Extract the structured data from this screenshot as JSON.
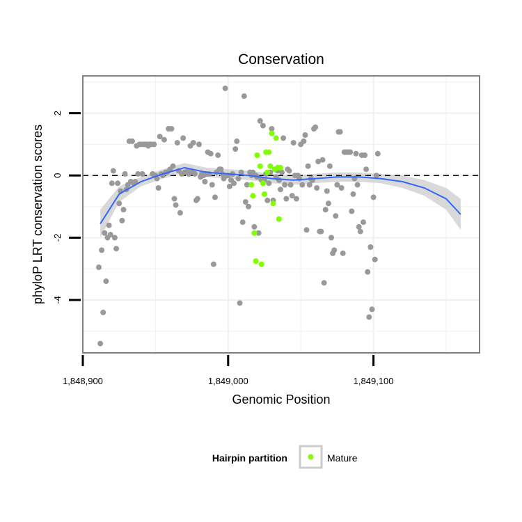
{
  "chart_data": {
    "type": "scatter",
    "title": "Conservation",
    "xlabel": "Genomic Position",
    "ylabel": "phyloP LRT conservation scores",
    "xlim": [
      1848900,
      1849173
    ],
    "ylim": [
      -5.7,
      3.2
    ],
    "x_ticks": [
      1848900,
      1849000,
      1849100
    ],
    "x_tick_labels": [
      "1,848,900",
      "1,849,000",
      "1,849,100"
    ],
    "y_ticks": [
      2,
      0,
      -2,
      -4
    ],
    "y_tick_labels": [
      "2",
      "0",
      "-2",
      "-4"
    ],
    "x_minor_grid": [
      1848950,
      1849050,
      1849150
    ],
    "y_minor_grid": [
      3,
      1,
      -1,
      -3,
      -5
    ],
    "grid": true,
    "reference_line_y": 0,
    "legend": {
      "title": "Hairpin partition",
      "position": "bottom",
      "entries": [
        {
          "label": "Mature",
          "color": "#7fff00"
        }
      ]
    },
    "colors": {
      "background_points": "#999999",
      "mature_points": "#7fff00",
      "smooth_line": "#3366ff",
      "confidence_band": "#cccccc",
      "panel_border": "#808080",
      "grid": "#f0f0f0"
    },
    "series": [
      {
        "color": "#999999",
        "points": [
          [
            1848911,
            -2.95
          ],
          [
            1848912,
            -5.4
          ],
          [
            1848913,
            -2.4
          ],
          [
            1848914,
            -4.4
          ],
          [
            1848915,
            -1.85
          ],
          [
            1848916,
            -3.4
          ],
          [
            1848917,
            -2.0
          ],
          [
            1848918,
            -1.6
          ],
          [
            1848919,
            -1.9
          ],
          [
            1848920,
            -0.25
          ],
          [
            1848921,
            0.15
          ],
          [
            1848922,
            -2.0
          ],
          [
            1848923,
            -2.35
          ],
          [
            1848924,
            -0.25
          ],
          [
            1848925,
            -0.9
          ],
          [
            1848926,
            -0.5
          ],
          [
            1848927,
            -1.45
          ],
          [
            1848928,
            -1.1
          ],
          [
            1848929,
            0.05
          ],
          [
            1848930,
            -0.45
          ],
          [
            1848931,
            -0.3
          ],
          [
            1848932,
            1.1
          ],
          [
            1848933,
            -0.2
          ],
          [
            1848934,
            1.1
          ],
          [
            1848935,
            -0.25
          ],
          [
            1848936,
            -0.2
          ],
          [
            1848937,
            0.95
          ],
          [
            1848938,
            0.05
          ],
          [
            1848939,
            1.0
          ],
          [
            1848940,
            1.0
          ],
          [
            1848941,
            0.05
          ],
          [
            1848942,
            1.0
          ],
          [
            1848943,
            1.0
          ],
          [
            1848944,
            1.0
          ],
          [
            1848945,
            0.95
          ],
          [
            1848946,
            1.0
          ],
          [
            1848947,
            1.0
          ],
          [
            1848948,
            0.05
          ],
          [
            1848949,
            1.0
          ],
          [
            1848950,
            0.0
          ],
          [
            1848951,
            -0.1
          ],
          [
            1848952,
            -0.4
          ],
          [
            1848953,
            1.25
          ],
          [
            1848954,
            0.05
          ],
          [
            1848955,
            0.0
          ],
          [
            1848956,
            1.15
          ],
          [
            1848957,
            0.1
          ],
          [
            1848958,
            0.1
          ],
          [
            1848959,
            1.5
          ],
          [
            1848960,
            0.2
          ],
          [
            1848961,
            1.5
          ],
          [
            1848962,
            0.3
          ],
          [
            1848963,
            -0.75
          ],
          [
            1848964,
            -0.95
          ],
          [
            1848965,
            1.05
          ],
          [
            1848966,
            0.15
          ],
          [
            1848967,
            -1.2
          ],
          [
            1848968,
            0.05
          ],
          [
            1848969,
            1.2
          ],
          [
            1848970,
            0.1
          ],
          [
            1848971,
            0.1
          ],
          [
            1848972,
            0.15
          ],
          [
            1848973,
            0.05
          ],
          [
            1848974,
            0.95
          ],
          [
            1848975,
            0.1
          ],
          [
            1848976,
            1.05
          ],
          [
            1848977,
            0.05
          ],
          [
            1848978,
            -0.8
          ],
          [
            1848979,
            -0.75
          ],
          [
            1848980,
            1.0
          ],
          [
            1848981,
            -0.05
          ],
          [
            1848982,
            0.05
          ],
          [
            1848983,
            0.0
          ],
          [
            1848984,
            -0.2
          ],
          [
            1848985,
            0.05
          ],
          [
            1848986,
            0.75
          ],
          [
            1848987,
            0.05
          ],
          [
            1848988,
            0.7
          ],
          [
            1848989,
            -0.3
          ],
          [
            1848990,
            -2.85
          ],
          [
            1848991,
            -0.7
          ],
          [
            1848992,
            0.1
          ],
          [
            1848993,
            0.65
          ],
          [
            1848994,
            0.2
          ],
          [
            1848995,
            0.2
          ],
          [
            1848996,
            0.05
          ],
          [
            1848997,
            -0.1
          ],
          [
            1848998,
            2.8
          ],
          [
            1848999,
            0.0
          ],
          [
            1849000,
            0.0
          ],
          [
            1849001,
            -0.35
          ],
          [
            1849002,
            -0.15
          ],
          [
            1849003,
            0.05
          ],
          [
            1849004,
            -0.25
          ],
          [
            1849005,
            0.85
          ],
          [
            1849006,
            1.1
          ],
          [
            1849007,
            -0.1
          ],
          [
            1849008,
            -4.1
          ],
          [
            1849009,
            0.1
          ],
          [
            1849010,
            -1.5
          ],
          [
            1849011,
            2.55
          ],
          [
            1849012,
            -0.85
          ],
          [
            1849013,
            -0.3
          ],
          [
            1849014,
            -1.0
          ],
          [
            1849015,
            0.1
          ],
          [
            1849016,
            0.0
          ],
          [
            1849017,
            0.1
          ],
          [
            1849018,
            -1.65
          ],
          [
            1849019,
            0.0
          ],
          [
            1849020,
            -0.05
          ],
          [
            1849021,
            -1.85
          ],
          [
            1849022,
            1.75
          ],
          [
            1849023,
            -0.15
          ],
          [
            1849024,
            1.6
          ],
          [
            1849025,
            -0.15
          ],
          [
            1849026,
            0.05
          ],
          [
            1849027,
            -0.8
          ],
          [
            1849028,
            -0.25
          ],
          [
            1849029,
            0.1
          ],
          [
            1849030,
            1.5
          ],
          [
            1849031,
            -0.8
          ],
          [
            1849032,
            0.2
          ],
          [
            1849033,
            -0.05
          ],
          [
            1849034,
            0.15
          ],
          [
            1849035,
            -0.15
          ],
          [
            1849036,
            -0.45
          ],
          [
            1849037,
            0.1
          ],
          [
            1849038,
            1.2
          ],
          [
            1849039,
            -0.3
          ],
          [
            1849040,
            -0.75
          ],
          [
            1849041,
            0.2
          ],
          [
            1849042,
            0.15
          ],
          [
            1849043,
            -0.3
          ],
          [
            1849044,
            -0.65
          ],
          [
            1849045,
            1.05
          ],
          [
            1849046,
            0.0
          ],
          [
            1849047,
            -0.75
          ],
          [
            1849048,
            0.0
          ],
          [
            1849049,
            -0.1
          ],
          [
            1849050,
            1.0
          ],
          [
            1849051,
            -0.3
          ],
          [
            1849052,
            1.1
          ],
          [
            1849053,
            1.3
          ],
          [
            1849054,
            -1.75
          ],
          [
            1849055,
            0.3
          ],
          [
            1849056,
            -0.3
          ],
          [
            1849057,
            -0.1
          ],
          [
            1849058,
            -0.15
          ],
          [
            1849059,
            1.5
          ],
          [
            1849060,
            1.55
          ],
          [
            1849061,
            -0.4
          ],
          [
            1849062,
            0.45
          ],
          [
            1849063,
            -1.8
          ],
          [
            1849064,
            -1.8
          ],
          [
            1849065,
            0.5
          ],
          [
            1849066,
            -3.45
          ],
          [
            1849067,
            -1.1
          ],
          [
            1849068,
            -0.5
          ],
          [
            1849069,
            -0.9
          ],
          [
            1849070,
            0.3
          ],
          [
            1849071,
            -2.0
          ],
          [
            1849072,
            -2.5
          ],
          [
            1849073,
            -2.4
          ],
          [
            1849074,
            -1.3
          ],
          [
            1849075,
            -0.3
          ],
          [
            1849076,
            1.4
          ],
          [
            1849077,
            1.4
          ],
          [
            1849078,
            -0.4
          ],
          [
            1849079,
            -2.5
          ],
          [
            1849080,
            0.75
          ],
          [
            1849081,
            0.75
          ],
          [
            1849082,
            0.75
          ],
          [
            1849083,
            0.75
          ],
          [
            1849084,
            0.75
          ],
          [
            1849085,
            -1.15
          ],
          [
            1849086,
            -0.6
          ],
          [
            1849087,
            -0.1
          ],
          [
            1849088,
            0.7
          ],
          [
            1849089,
            -0.3
          ],
          [
            1849090,
            -1.65
          ],
          [
            1849091,
            -1.8
          ],
          [
            1849092,
            0.65
          ],
          [
            1849093,
            -1.5
          ],
          [
            1849094,
            0.65
          ],
          [
            1849095,
            0.2
          ],
          [
            1849096,
            -3.1
          ],
          [
            1849097,
            -4.55
          ],
          [
            1849098,
            -2.3
          ],
          [
            1849099,
            -4.3
          ],
          [
            1849100,
            -0.7
          ],
          [
            1849101,
            -2.7
          ],
          [
            1849102,
            0.0
          ],
          [
            1849103,
            0.7
          ]
        ]
      },
      {
        "name": "Mature",
        "color": "#7fff00",
        "points": [
          [
            1849016,
            -0.3
          ],
          [
            1849017,
            -0.65
          ],
          [
            1849018,
            -1.85
          ],
          [
            1849019,
            -2.75
          ],
          [
            1849020,
            0.65
          ],
          [
            1849022,
            0.3
          ],
          [
            1849023,
            -2.85
          ],
          [
            1849024,
            -0.25
          ],
          [
            1849025,
            -0.6
          ],
          [
            1849026,
            0.75
          ],
          [
            1849027,
            0.1
          ],
          [
            1849028,
            0.75
          ],
          [
            1849029,
            0.3
          ],
          [
            1849030,
            1.35
          ],
          [
            1849031,
            -0.9
          ],
          [
            1849032,
            0.2
          ],
          [
            1849033,
            1.2
          ],
          [
            1849034,
            0.25
          ],
          [
            1849035,
            -1.4
          ],
          [
            1849036,
            0.25
          ]
        ]
      }
    ],
    "smooth": {
      "x": [
        1848912,
        1848925,
        1848940,
        1848955,
        1848970,
        1848985,
        1849000,
        1849015,
        1849030,
        1849045,
        1849060,
        1849075,
        1849090,
        1849105,
        1849120,
        1849135,
        1849150,
        1849160
      ],
      "y": [
        -1.55,
        -0.6,
        -0.2,
        0.05,
        0.25,
        0.1,
        0.05,
        0.0,
        -0.1,
        -0.15,
        -0.1,
        -0.05,
        -0.05,
        -0.1,
        -0.2,
        -0.4,
        -0.75,
        -1.25
      ],
      "lower": [
        -2.0,
        -0.85,
        -0.35,
        -0.1,
        0.1,
        -0.05,
        -0.1,
        -0.15,
        -0.25,
        -0.3,
        -0.25,
        -0.2,
        -0.2,
        -0.25,
        -0.4,
        -0.65,
        -1.1,
        -1.75
      ],
      "upper": [
        -1.1,
        -0.35,
        -0.05,
        0.2,
        0.4,
        0.25,
        0.2,
        0.15,
        0.05,
        0.0,
        0.05,
        0.1,
        0.1,
        0.05,
        0.0,
        -0.15,
        -0.4,
        -0.75
      ]
    }
  }
}
